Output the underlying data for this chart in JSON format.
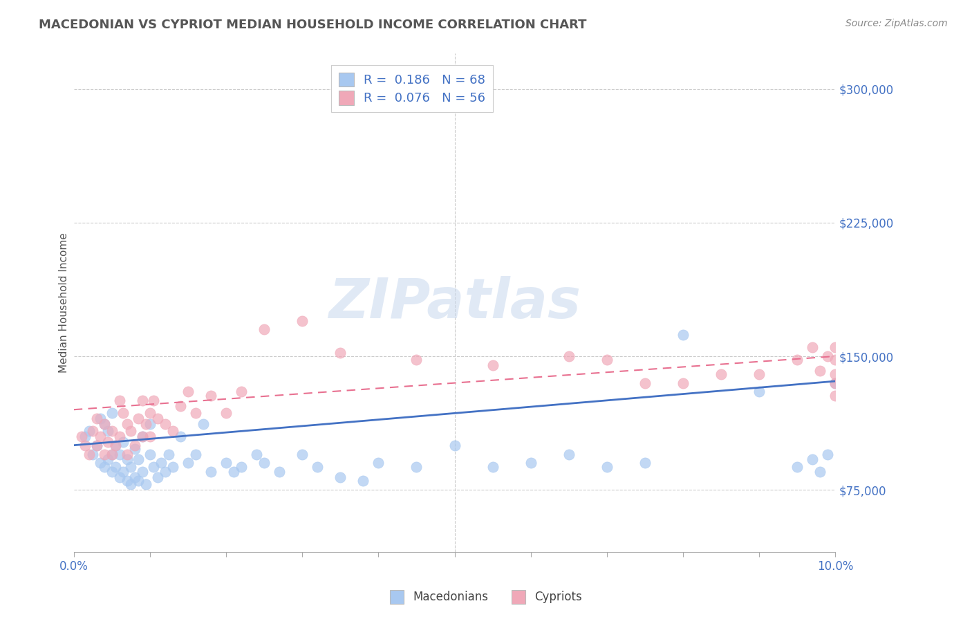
{
  "title": "MACEDONIAN VS CYPRIOT MEDIAN HOUSEHOLD INCOME CORRELATION CHART",
  "source": "Source: ZipAtlas.com",
  "ylabel": "Median Household Income",
  "xlim": [
    0.0,
    10.0
  ],
  "ylim": [
    40000,
    320000
  ],
  "yticks": [
    75000,
    150000,
    225000,
    300000
  ],
  "xticks": [
    0.0,
    1.0,
    2.0,
    3.0,
    4.0,
    5.0,
    6.0,
    7.0,
    8.0,
    9.0,
    10.0
  ],
  "mac_R": 0.186,
  "mac_N": 68,
  "cyp_R": 0.076,
  "cyp_N": 56,
  "mac_color": "#a8c8f0",
  "cyp_color": "#f0a8b8",
  "mac_line_color": "#4472c4",
  "cyp_line_color": "#e87090",
  "watermark": "ZIPatlas",
  "legend_label_mac": "Macedonians",
  "legend_label_cyp": "Cypriots",
  "mac_trend_x0": 0.0,
  "mac_trend_y0": 100000,
  "mac_trend_x1": 10.0,
  "mac_trend_y1": 136000,
  "cyp_trend_x0": 0.0,
  "cyp_trend_y0": 120000,
  "cyp_trend_x1": 10.0,
  "cyp_trend_y1": 150000,
  "mac_scatter_x": [
    0.15,
    0.2,
    0.25,
    0.3,
    0.35,
    0.35,
    0.4,
    0.4,
    0.45,
    0.45,
    0.5,
    0.5,
    0.5,
    0.55,
    0.55,
    0.6,
    0.6,
    0.65,
    0.65,
    0.7,
    0.7,
    0.75,
    0.75,
    0.8,
    0.8,
    0.85,
    0.85,
    0.9,
    0.9,
    0.95,
    1.0,
    1.0,
    1.05,
    1.1,
    1.15,
    1.2,
    1.25,
    1.3,
    1.4,
    1.5,
    1.6,
    1.7,
    1.8,
    2.0,
    2.1,
    2.2,
    2.4,
    2.5,
    2.7,
    3.0,
    3.2,
    3.5,
    3.8,
    4.0,
    4.5,
    5.0,
    5.5,
    6.0,
    6.5,
    7.0,
    7.5,
    8.0,
    9.0,
    9.5,
    9.7,
    9.8,
    9.9,
    10.0
  ],
  "mac_scatter_y": [
    105000,
    108000,
    95000,
    100000,
    90000,
    115000,
    88000,
    112000,
    92000,
    108000,
    85000,
    95000,
    118000,
    88000,
    100000,
    82000,
    95000,
    85000,
    102000,
    80000,
    92000,
    78000,
    88000,
    82000,
    98000,
    80000,
    92000,
    85000,
    105000,
    78000,
    95000,
    112000,
    88000,
    82000,
    90000,
    85000,
    95000,
    88000,
    105000,
    90000,
    95000,
    112000,
    85000,
    90000,
    85000,
    88000,
    95000,
    90000,
    85000,
    95000,
    88000,
    82000,
    80000,
    90000,
    88000,
    100000,
    88000,
    90000,
    95000,
    88000,
    90000,
    162000,
    130000,
    88000,
    92000,
    85000,
    95000,
    135000
  ],
  "cyp_scatter_x": [
    0.1,
    0.15,
    0.2,
    0.25,
    0.3,
    0.3,
    0.35,
    0.4,
    0.4,
    0.45,
    0.5,
    0.5,
    0.55,
    0.6,
    0.6,
    0.65,
    0.7,
    0.7,
    0.75,
    0.8,
    0.85,
    0.9,
    0.9,
    0.95,
    1.0,
    1.0,
    1.05,
    1.1,
    1.2,
    1.3,
    1.4,
    1.5,
    1.6,
    1.8,
    2.0,
    2.2,
    2.5,
    3.0,
    3.5,
    4.5,
    5.5,
    6.5,
    7.0,
    7.5,
    8.0,
    8.5,
    9.0,
    9.5,
    9.7,
    9.8,
    9.9,
    10.0,
    10.0,
    10.0,
    10.0,
    10.0
  ],
  "cyp_scatter_y": [
    105000,
    100000,
    95000,
    108000,
    100000,
    115000,
    105000,
    112000,
    95000,
    102000,
    95000,
    108000,
    100000,
    125000,
    105000,
    118000,
    112000,
    95000,
    108000,
    100000,
    115000,
    105000,
    125000,
    112000,
    118000,
    105000,
    125000,
    115000,
    112000,
    108000,
    122000,
    130000,
    118000,
    128000,
    118000,
    130000,
    165000,
    170000,
    152000,
    148000,
    145000,
    150000,
    148000,
    135000,
    135000,
    140000,
    140000,
    148000,
    155000,
    142000,
    150000,
    148000,
    140000,
    135000,
    155000,
    128000
  ]
}
